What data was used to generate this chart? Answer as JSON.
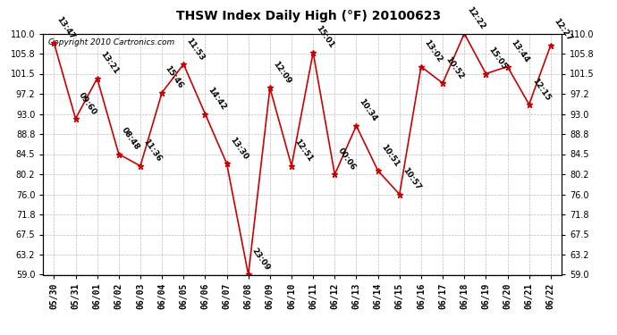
{
  "title": "THSW Index Daily High (°F) 20100623",
  "copyright": "Copyright 2010 Cartronics.com",
  "x_labels": [
    "05/30",
    "05/31",
    "06/01",
    "06/02",
    "06/03",
    "06/04",
    "06/05",
    "06/06",
    "06/07",
    "06/08",
    "06/09",
    "06/10",
    "06/11",
    "06/12",
    "06/13",
    "06/14",
    "06/15",
    "06/16",
    "06/17",
    "06/18",
    "06/19",
    "06/20",
    "06/21",
    "06/22"
  ],
  "y_values": [
    108.0,
    92.0,
    100.5,
    84.5,
    82.0,
    97.5,
    103.5,
    93.0,
    82.5,
    59.0,
    98.5,
    82.0,
    106.0,
    80.2,
    90.5,
    81.0,
    76.0,
    103.0,
    99.5,
    110.0,
    101.5,
    103.0,
    95.0,
    107.5
  ],
  "time_labels": [
    "13:47",
    "09:60",
    "13:21",
    "08:48",
    "11:36",
    "15:46",
    "11:53",
    "14:42",
    "13:30",
    "23:09",
    "12:09",
    "12:51",
    "15:01",
    "00:06",
    "10:34",
    "10:51",
    "10:57",
    "13:02",
    "10:52",
    "12:22",
    "15:05",
    "13:44",
    "12:15",
    "12:27"
  ],
  "ylim_min": 59.0,
  "ylim_max": 110.0,
  "yticks": [
    59.0,
    63.2,
    67.5,
    71.8,
    76.0,
    80.2,
    84.5,
    88.8,
    93.0,
    97.2,
    101.5,
    105.8,
    110.0
  ],
  "line_color": "#cc0000",
  "marker_color": "#cc0000",
  "bg_color": "#ffffff",
  "grid_color": "#bbbbbb",
  "title_fontsize": 10,
  "tick_fontsize": 7,
  "copyright_fontsize": 6.5,
  "annot_fontsize": 6.5
}
